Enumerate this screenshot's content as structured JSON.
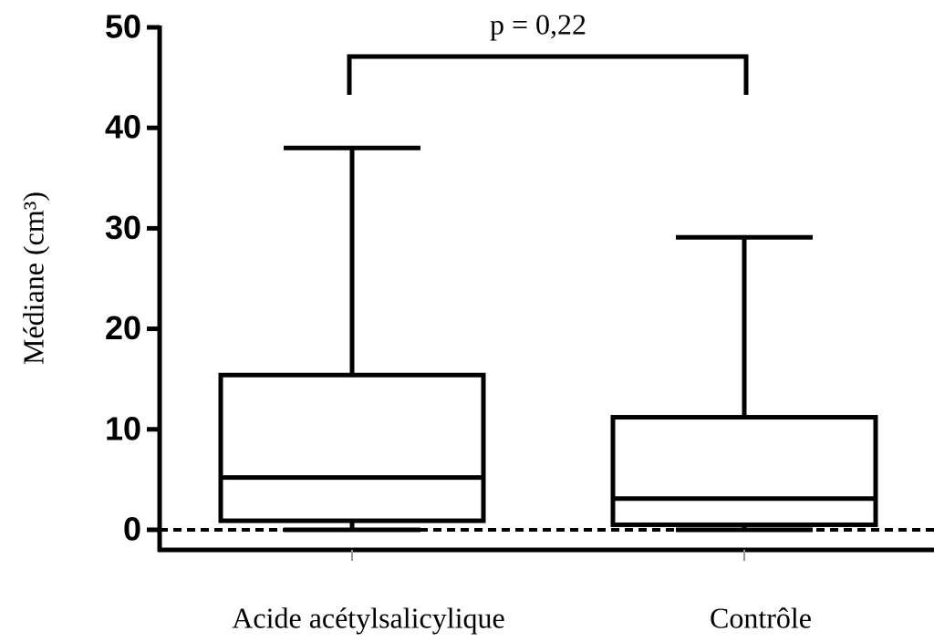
{
  "chart_data": {
    "type": "box",
    "ylabel": "Médiane (cm³)",
    "annotation": "p = 0,22",
    "categories": [
      "Acide acétylsalicylique",
      "Contrôle"
    ],
    "boxes": [
      {
        "min": 0,
        "q1": 0.9,
        "median": 5.2,
        "q3": 15.4,
        "max": 38
      },
      {
        "min": 0,
        "q1": 0.5,
        "median": 3.1,
        "q3": 11.2,
        "max": 29.1
      }
    ],
    "color": "#000000",
    "ylim": [
      -2,
      50
    ],
    "yticks": [
      0,
      10,
      20,
      30,
      40,
      50
    ]
  }
}
